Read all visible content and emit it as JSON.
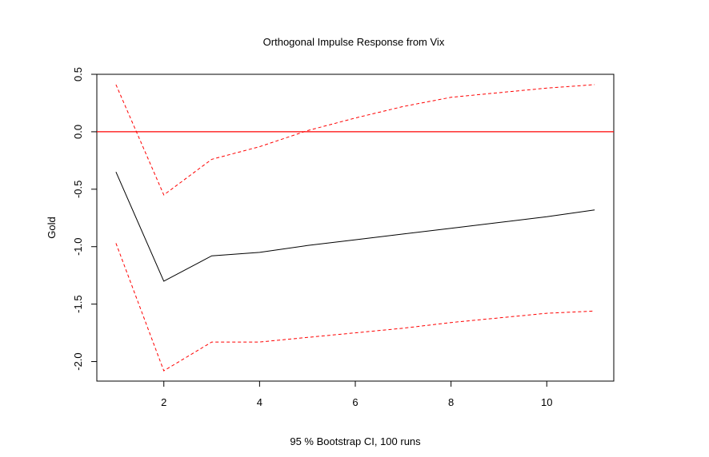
{
  "chart_data": {
    "type": "line",
    "title": "Orthogonal Impulse Response from Vix",
    "xlabel": "95 % Bootstrap CI,  100 runs",
    "ylabel": "Gold",
    "xlim": [
      0.6,
      11.4
    ],
    "ylim": [
      -2.17,
      0.5
    ],
    "x_ticks": [
      2,
      4,
      6,
      8,
      10
    ],
    "x_tick_labels": [
      "2",
      "4",
      "6",
      "8",
      "10"
    ],
    "y_ticks": [
      0.5,
      0.0,
      -0.5,
      -1.0,
      -1.5,
      -2.0
    ],
    "y_tick_labels": [
      "0.5",
      "0.0",
      "-0.5",
      "-1.0",
      "-1.5",
      "-2.0"
    ],
    "grid": false,
    "x": [
      1,
      2,
      3,
      4,
      5,
      6,
      7,
      8,
      9,
      10,
      11
    ],
    "series": [
      {
        "role": "response",
        "color": "#000000",
        "dashed": false,
        "values": [
          -0.35,
          -1.3,
          -1.08,
          -1.05,
          -0.99,
          -0.94,
          -0.89,
          -0.84,
          -0.79,
          -0.74,
          -0.68
        ]
      },
      {
        "role": "upper-ci",
        "color": "#ff0000",
        "dashed": true,
        "values": [
          0.41,
          -0.55,
          -0.24,
          -0.13,
          0.01,
          0.12,
          0.22,
          0.3,
          0.34,
          0.38,
          0.41
        ]
      },
      {
        "role": "lower-ci",
        "color": "#ff0000",
        "dashed": true,
        "values": [
          -0.97,
          -2.08,
          -1.83,
          -1.83,
          -1.79,
          -1.75,
          -1.71,
          -1.66,
          -1.62,
          -1.58,
          -1.56
        ]
      }
    ],
    "reference_line": {
      "y": 0.0,
      "color": "#ff0000"
    }
  }
}
